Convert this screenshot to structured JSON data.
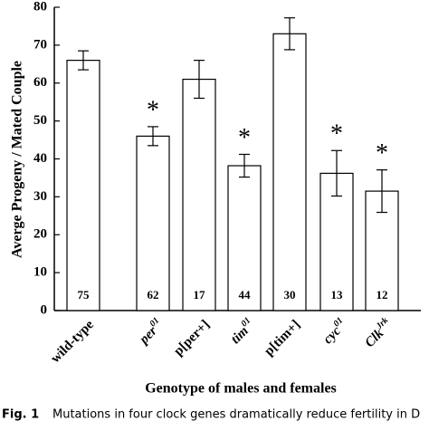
{
  "chart_data": {
    "type": "bar",
    "y_label": "Averge Progeny / Mated Couple",
    "x_label": "Genotype of males and females",
    "categories": [
      "wild-type",
      "per",
      "p[per+]",
      "tim",
      "p[tim+]",
      "cyc",
      "Clk"
    ],
    "category_superscripts": [
      null,
      "01",
      null,
      "01",
      null,
      "01",
      "Jrk"
    ],
    "values": [
      66,
      46,
      61,
      38.2,
      73,
      36.2,
      31.5
    ],
    "errors": [
      2.5,
      2.5,
      5,
      3,
      4.2,
      6,
      5.6
    ],
    "sample_sizes": [
      75,
      62,
      17,
      44,
      30,
      13,
      12
    ],
    "markers": [
      null,
      "*",
      null,
      "*",
      null,
      "*",
      "*"
    ],
    "color": "#ffffff",
    "ylim": [
      0,
      80
    ],
    "yticks": [
      0,
      10,
      20,
      30,
      40,
      50,
      60,
      70,
      80
    ]
  },
  "caption": {
    "label": "Fig. 1",
    "text": "Mutations in four clock genes dramatically reduce fertility in D"
  }
}
